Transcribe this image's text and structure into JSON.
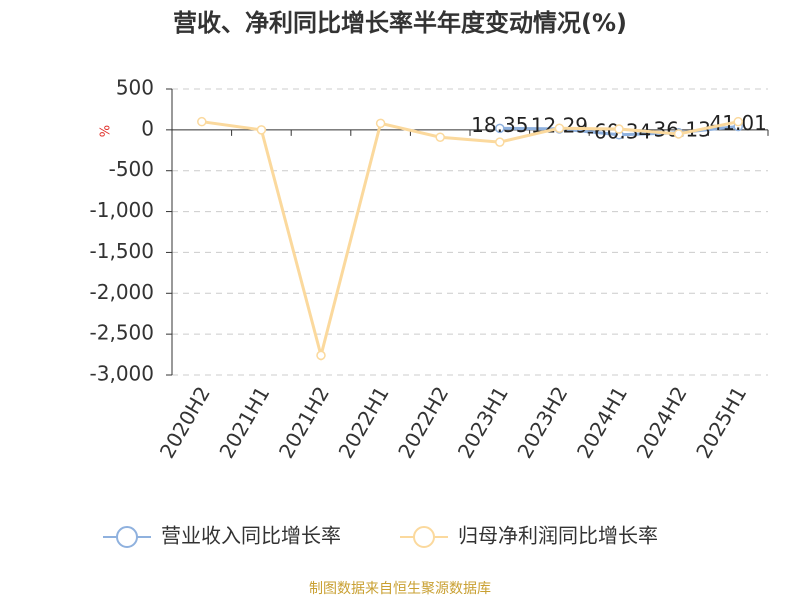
{
  "chart_data": {
    "type": "line",
    "title": "营收、净利同比增长率半年度变动情况(%)",
    "y_axis_label": "%",
    "categories": [
      "2020H2",
      "2021H1",
      "2021H2",
      "2022H1",
      "2022H2",
      "2023H1",
      "2023H2",
      "2024H1",
      "2024H2",
      "2025H1"
    ],
    "series": [
      {
        "name": "营业收入同比增长率",
        "color": "#8fb1de",
        "values": [
          null,
          null,
          null,
          null,
          null,
          18.35,
          12.29,
          -60.34,
          -36.13,
          41.01
        ],
        "show_labels": true
      },
      {
        "name": "归母净利润同比增长率",
        "color": "#fbd99d",
        "values": [
          100,
          0,
          -2760,
          80,
          -90,
          -150,
          20,
          10,
          -50,
          100
        ],
        "show_labels": false
      }
    ],
    "ylim": [
      -3000,
      500
    ],
    "yticks": [
      500,
      0,
      -500,
      {
        "value": -1000,
        "label": "-1,000"
      },
      {
        "value": -1500,
        "label": "-1,500"
      },
      {
        "value": -2000,
        "label": "-2,000"
      },
      {
        "value": -2500,
        "label": "-2,500"
      },
      {
        "value": -3000,
        "label": "-3,000"
      }
    ],
    "grid": true,
    "source": "制图数据来自恒生聚源数据库"
  }
}
